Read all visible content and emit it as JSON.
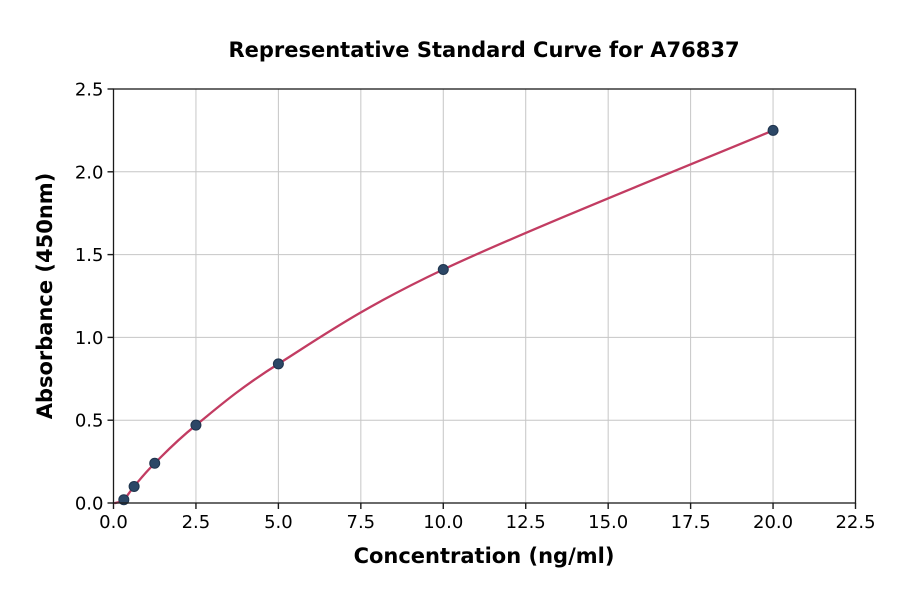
{
  "chart_data": {
    "type": "scatter",
    "title": "Representative Standard Curve for A76837",
    "xlabel": "Concentration (ng/ml)",
    "ylabel": "Absorbance (450nm)",
    "xlim": [
      0,
      22.5
    ],
    "ylim": [
      0,
      2.5
    ],
    "xtick_values": [
      0,
      2.5,
      5,
      7.5,
      10,
      12.5,
      15,
      17.5,
      20,
      22.5
    ],
    "xtick_labels": [
      "0.0",
      "2.5",
      "5.0",
      "7.5",
      "10.0",
      "12.5",
      "15.0",
      "17.5",
      "20.0",
      "22.5"
    ],
    "ytick_values": [
      0,
      0.5,
      1.0,
      1.5,
      2.0,
      2.5
    ],
    "ytick_labels": [
      "0.0",
      "0.5",
      "1.0",
      "1.5",
      "2.0",
      "2.5"
    ],
    "grid": true,
    "legend": "none",
    "points": {
      "x": [
        0.313,
        0.625,
        1.25,
        2.5,
        5,
        10,
        20
      ],
      "y": [
        0.02,
        0.1,
        0.24,
        0.47,
        0.84,
        1.41,
        2.25
      ]
    },
    "fit_curve": {
      "color": "#c23c62",
      "anchor_start": [
        0.05,
        0.0
      ]
    },
    "marker": {
      "fill": "#2c4766",
      "edge": "#1f344d"
    },
    "colors": {
      "grid": "#c6c6c6",
      "spine": "#1a1a1a",
      "text": "#000000",
      "background": "#ffffff"
    }
  }
}
